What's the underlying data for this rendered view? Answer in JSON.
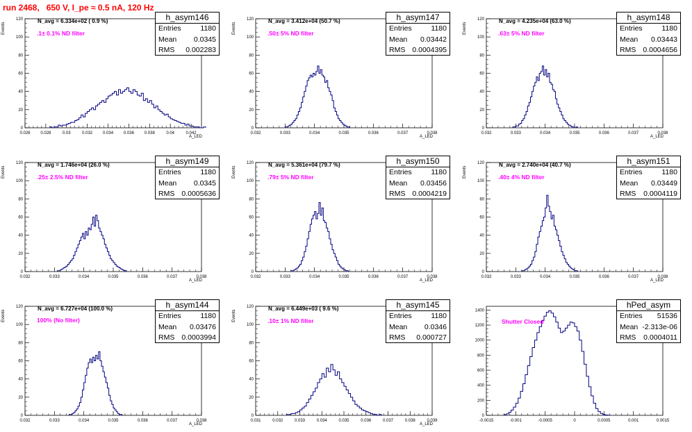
{
  "title": "run 2468,   650 V, I_pe ≈ 0.5 nA, 120 Hz",
  "colors": {
    "title": "#ff0000",
    "histogram": "#000080",
    "filter_text": "#ff00ff",
    "axis": "#000000"
  },
  "chart_data": [
    {
      "type": "histogram",
      "name": "h_asym146",
      "navg": "N_avg = 6.334e+02 ( 0.9 %)",
      "filter": ".1± 0.1% ND filter",
      "stats": {
        "entries": "1180",
        "mean": "0.0345",
        "rms": "0.002283"
      },
      "ylabel": "Events",
      "xlabel": "A_LED",
      "xlim": [
        0.026,
        0.043
      ],
      "ylim": [
        0,
        120
      ],
      "yticks": [
        0,
        20,
        40,
        60,
        80,
        100,
        120
      ],
      "xticks": [
        0.026,
        0.028,
        0.03,
        0.032,
        0.034,
        0.036,
        0.038,
        0.04,
        0.042
      ],
      "xtick_labels": [
        "0.026",
        "0.028",
        "0.03",
        "0.032",
        "0.034",
        "0.036",
        "0.038",
        "0.04",
        "0.042"
      ],
      "bin_start": 0.0284,
      "bin_width": 0.0002,
      "counts": [
        1,
        0,
        1,
        1,
        3,
        2,
        3,
        3,
        4,
        5,
        6,
        6,
        8,
        9,
        11,
        14,
        12,
        16,
        18,
        20,
        22,
        20,
        24,
        26,
        28,
        30,
        28,
        32,
        35,
        36,
        38,
        40,
        36,
        42,
        38,
        40,
        42,
        44,
        40,
        38,
        42,
        40,
        36,
        35,
        38,
        30,
        32,
        28,
        30,
        26,
        22,
        24,
        20,
        18,
        16,
        14,
        15,
        12,
        10,
        9,
        8,
        7,
        6,
        5,
        5,
        3,
        4,
        2,
        2,
        1,
        1,
        1,
        0,
        0,
        1
      ]
    },
    {
      "type": "histogram",
      "name": "h_asym147",
      "navg": "N_avg = 3.412e+04 (50.7 %)",
      "filter": ".50± 5% ND filter",
      "stats": {
        "entries": "1180",
        "mean": "0.03442",
        "rms": "0.0004395"
      },
      "ylabel": "Events",
      "xlabel": "A_LED",
      "xlim": [
        0.032,
        0.038
      ],
      "ylim": [
        0,
        120
      ],
      "yticks": [
        0,
        20,
        40,
        60,
        80,
        100,
        120
      ],
      "xticks": [
        0.032,
        0.033,
        0.034,
        0.035,
        0.036,
        0.037,
        0.038
      ],
      "xtick_labels": [
        "0.032",
        "0.033",
        "0.034",
        "0.035",
        "0.036",
        "0.037",
        "0.038"
      ],
      "bin_start": 0.033,
      "bin_width": 5e-05,
      "counts": [
        1,
        1,
        2,
        3,
        4,
        6,
        8,
        10,
        14,
        18,
        22,
        28,
        34,
        40,
        46,
        52,
        55,
        58,
        56,
        60,
        58,
        62,
        68,
        60,
        64,
        58,
        56,
        50,
        52,
        44,
        40,
        36,
        30,
        22,
        18,
        14,
        10,
        8,
        6,
        4,
        3,
        2,
        1,
        1
      ]
    },
    {
      "type": "histogram",
      "name": "h_asym148",
      "navg": "N_avg = 4.235e+04 (63.0 %)",
      "filter": ".63± 5% ND filter",
      "stats": {
        "entries": "1180",
        "mean": "0.03443",
        "rms": "0.0004656"
      },
      "ylabel": "Events",
      "xlabel": "A_LED",
      "xlim": [
        0.032,
        0.038
      ],
      "ylim": [
        0,
        120
      ],
      "yticks": [
        0,
        20,
        40,
        60,
        80,
        100,
        120
      ],
      "xticks": [
        0.032,
        0.033,
        0.034,
        0.035,
        0.036,
        0.037,
        0.038
      ],
      "xtick_labels": [
        "0.032",
        "0.033",
        "0.034",
        "0.035",
        "0.036",
        "0.037",
        "0.038"
      ],
      "bin_start": 0.0329,
      "bin_width": 5e-05,
      "counts": [
        1,
        1,
        2,
        2,
        4,
        5,
        8,
        10,
        14,
        18,
        24,
        28,
        34,
        40,
        46,
        50,
        56,
        52,
        60,
        62,
        68,
        58,
        64,
        56,
        60,
        50,
        48,
        42,
        40,
        32,
        26,
        22,
        18,
        14,
        10,
        8,
        6,
        4,
        3,
        2,
        1,
        1,
        0,
        1
      ]
    },
    {
      "type": "histogram",
      "name": "h_asym149",
      "navg": "N_avg = 1.746e+04 (26.0 %)",
      "filter": ".25± 2.5% ND filter",
      "stats": {
        "entries": "1180",
        "mean": "0.0345",
        "rms": "0.0005636"
      },
      "ylabel": "Events",
      "xlabel": "A_LED",
      "xlim": [
        0.032,
        0.038
      ],
      "ylim": [
        0,
        120
      ],
      "yticks": [
        0,
        20,
        40,
        60,
        80,
        100,
        120
      ],
      "xticks": [
        0.032,
        0.033,
        0.034,
        0.035,
        0.036,
        0.037,
        0.038
      ],
      "xtick_labels": [
        "0.032",
        "0.033",
        "0.034",
        "0.035",
        "0.036",
        "0.037",
        "0.038"
      ],
      "bin_start": 0.0331,
      "bin_width": 5e-05,
      "counts": [
        1,
        1,
        2,
        3,
        4,
        5,
        6,
        8,
        10,
        12,
        14,
        18,
        22,
        26,
        30,
        34,
        38,
        42,
        36,
        44,
        40,
        48,
        46,
        52,
        60,
        50,
        62,
        56,
        48,
        44,
        40,
        36,
        30,
        26,
        22,
        18,
        14,
        12,
        10,
        8,
        6,
        5,
        4,
        3,
        2,
        1,
        1
      ]
    },
    {
      "type": "histogram",
      "name": "h_asym150",
      "navg": "N_avg = 5.361e+04 (79.7 %)",
      "filter": ".79± 5% ND filter",
      "stats": {
        "entries": "1180",
        "mean": "0.03456",
        "rms": "0.0004219"
      },
      "ylabel": "Events",
      "xlabel": "A_LED",
      "xlim": [
        0.032,
        0.038
      ],
      "ylim": [
        0,
        120
      ],
      "yticks": [
        0,
        20,
        40,
        60,
        80,
        100,
        120
      ],
      "xticks": [
        0.032,
        0.033,
        0.034,
        0.035,
        0.036,
        0.037,
        0.038
      ],
      "xtick_labels": [
        "0.032",
        "0.033",
        "0.034",
        "0.035",
        "0.036",
        "0.037",
        "0.038"
      ],
      "bin_start": 0.0332,
      "bin_width": 5e-05,
      "counts": [
        1,
        1,
        2,
        3,
        4,
        6,
        8,
        12,
        16,
        22,
        28,
        36,
        44,
        52,
        58,
        62,
        66,
        58,
        64,
        76,
        62,
        70,
        56,
        54,
        48,
        44,
        36,
        30,
        24,
        20,
        16,
        12,
        8,
        6,
        4,
        3,
        2,
        1,
        1
      ]
    },
    {
      "type": "histogram",
      "name": "h_asym151",
      "navg": "N_avg = 2.740e+04 (40.7 %)",
      "filter": ".40± 4% ND filter",
      "stats": {
        "entries": "1180",
        "mean": "0.03449",
        "rms": "0.0004119"
      },
      "ylabel": "Events",
      "xlabel": "A_LED",
      "xlim": [
        0.032,
        0.038
      ],
      "ylim": [
        0,
        120
      ],
      "yticks": [
        0,
        20,
        40,
        60,
        80,
        100,
        120
      ],
      "xticks": [
        0.032,
        0.033,
        0.034,
        0.035,
        0.036,
        0.037,
        0.038
      ],
      "xtick_labels": [
        "0.032",
        "0.033",
        "0.034",
        "0.035",
        "0.036",
        "0.037",
        "0.038"
      ],
      "bin_start": 0.0332,
      "bin_width": 5e-05,
      "counts": [
        1,
        1,
        2,
        3,
        4,
        6,
        8,
        12,
        16,
        22,
        30,
        38,
        44,
        50,
        56,
        60,
        70,
        84,
        72,
        66,
        58,
        62,
        50,
        46,
        40,
        34,
        28,
        22,
        18,
        14,
        10,
        8,
        6,
        4,
        3,
        2,
        1,
        1
      ]
    },
    {
      "type": "histogram",
      "name": "h_asym144",
      "navg": "N_avg = 6.727e+04 (100.0 %)",
      "filter": "100% (No filter)",
      "stats": {
        "entries": "1180",
        "mean": "0.03476",
        "rms": "0.0003994"
      },
      "ylabel": "Events",
      "xlabel": "A_LED",
      "xlim": [
        0.032,
        0.038
      ],
      "ylim": [
        0,
        120
      ],
      "yticks": [
        0,
        20,
        40,
        60,
        80,
        100,
        120
      ],
      "xticks": [
        0.032,
        0.033,
        0.034,
        0.035,
        0.036,
        0.037,
        0.038
      ],
      "xtick_labels": [
        "0.032",
        "0.033",
        "0.034",
        "0.035",
        "0.036",
        "0.037",
        "0.038"
      ],
      "bin_start": 0.0335,
      "bin_width": 5e-05,
      "counts": [
        1,
        1,
        2,
        3,
        5,
        7,
        10,
        14,
        20,
        28,
        36,
        44,
        52,
        58,
        62,
        58,
        64,
        60,
        66,
        62,
        70,
        60,
        54,
        48,
        42,
        36,
        30,
        22,
        16,
        12,
        8,
        6,
        4,
        2,
        1,
        1
      ]
    },
    {
      "type": "histogram",
      "name": "h_asym145",
      "navg": "N_avg = 6.449e+03 ( 9.6 %)",
      "filter": ".10± 1% ND filter",
      "stats": {
        "entries": "1180",
        "mean": "0.0346",
        "rms": "0.000727"
      },
      "ylabel": "Events",
      "xlabel": "A_LED",
      "xlim": [
        0.031,
        0.039
      ],
      "ylim": [
        0,
        120
      ],
      "yticks": [
        0,
        20,
        40,
        60,
        80,
        100,
        120
      ],
      "xticks": [
        0.031,
        0.032,
        0.033,
        0.034,
        0.035,
        0.036,
        0.037,
        0.038,
        0.039
      ],
      "xtick_labels": [
        "0.031",
        "0.032",
        "0.033",
        "0.034",
        "0.035",
        "0.036",
        "0.037",
        "0.038",
        "0.039"
      ],
      "bin_start": 0.0324,
      "bin_width": 0.0001,
      "counts": [
        1,
        1,
        2,
        2,
        3,
        4,
        6,
        8,
        10,
        14,
        18,
        22,
        26,
        30,
        36,
        40,
        46,
        42,
        52,
        48,
        56,
        50,
        44,
        48,
        40,
        36,
        32,
        28,
        24,
        20,
        16,
        12,
        10,
        8,
        6,
        5,
        4,
        3,
        2,
        1,
        1,
        0,
        1
      ]
    },
    {
      "type": "histogram",
      "name": "hPed_asym",
      "navg": "",
      "filter": "Shutter Closed",
      "stats": {
        "entries": "51536",
        "mean": "-2.313e-06",
        "rms": "0.0004011"
      },
      "ylabel": "",
      "xlabel": "",
      "xlim": [
        -0.0015,
        0.0015
      ],
      "ylim": [
        0,
        1450
      ],
      "yticks": [
        0,
        200,
        400,
        600,
        800,
        1000,
        1200,
        1400
      ],
      "xticks": [
        -0.0015,
        -0.001,
        -0.0005,
        0,
        0.0005,
        0.001,
        0.0015
      ],
      "xtick_labels": [
        "-0.0015",
        "-0.001",
        "-0.0005",
        "0",
        "0.0005",
        "0.001",
        "0.0015"
      ],
      "bin_start": -0.0012,
      "bin_width": 4e-05,
      "counts": [
        10,
        20,
        40,
        70,
        110,
        160,
        230,
        320,
        420,
        540,
        660,
        780,
        900,
        1000,
        1100,
        1180,
        1260,
        1320,
        1370,
        1390,
        1360,
        1310,
        1240,
        1160,
        1100,
        1120,
        1160,
        1200,
        1240,
        1230,
        1180,
        1120,
        1000,
        850,
        680,
        520,
        380,
        260,
        160,
        90,
        50,
        25,
        12,
        5,
        2
      ]
    }
  ]
}
